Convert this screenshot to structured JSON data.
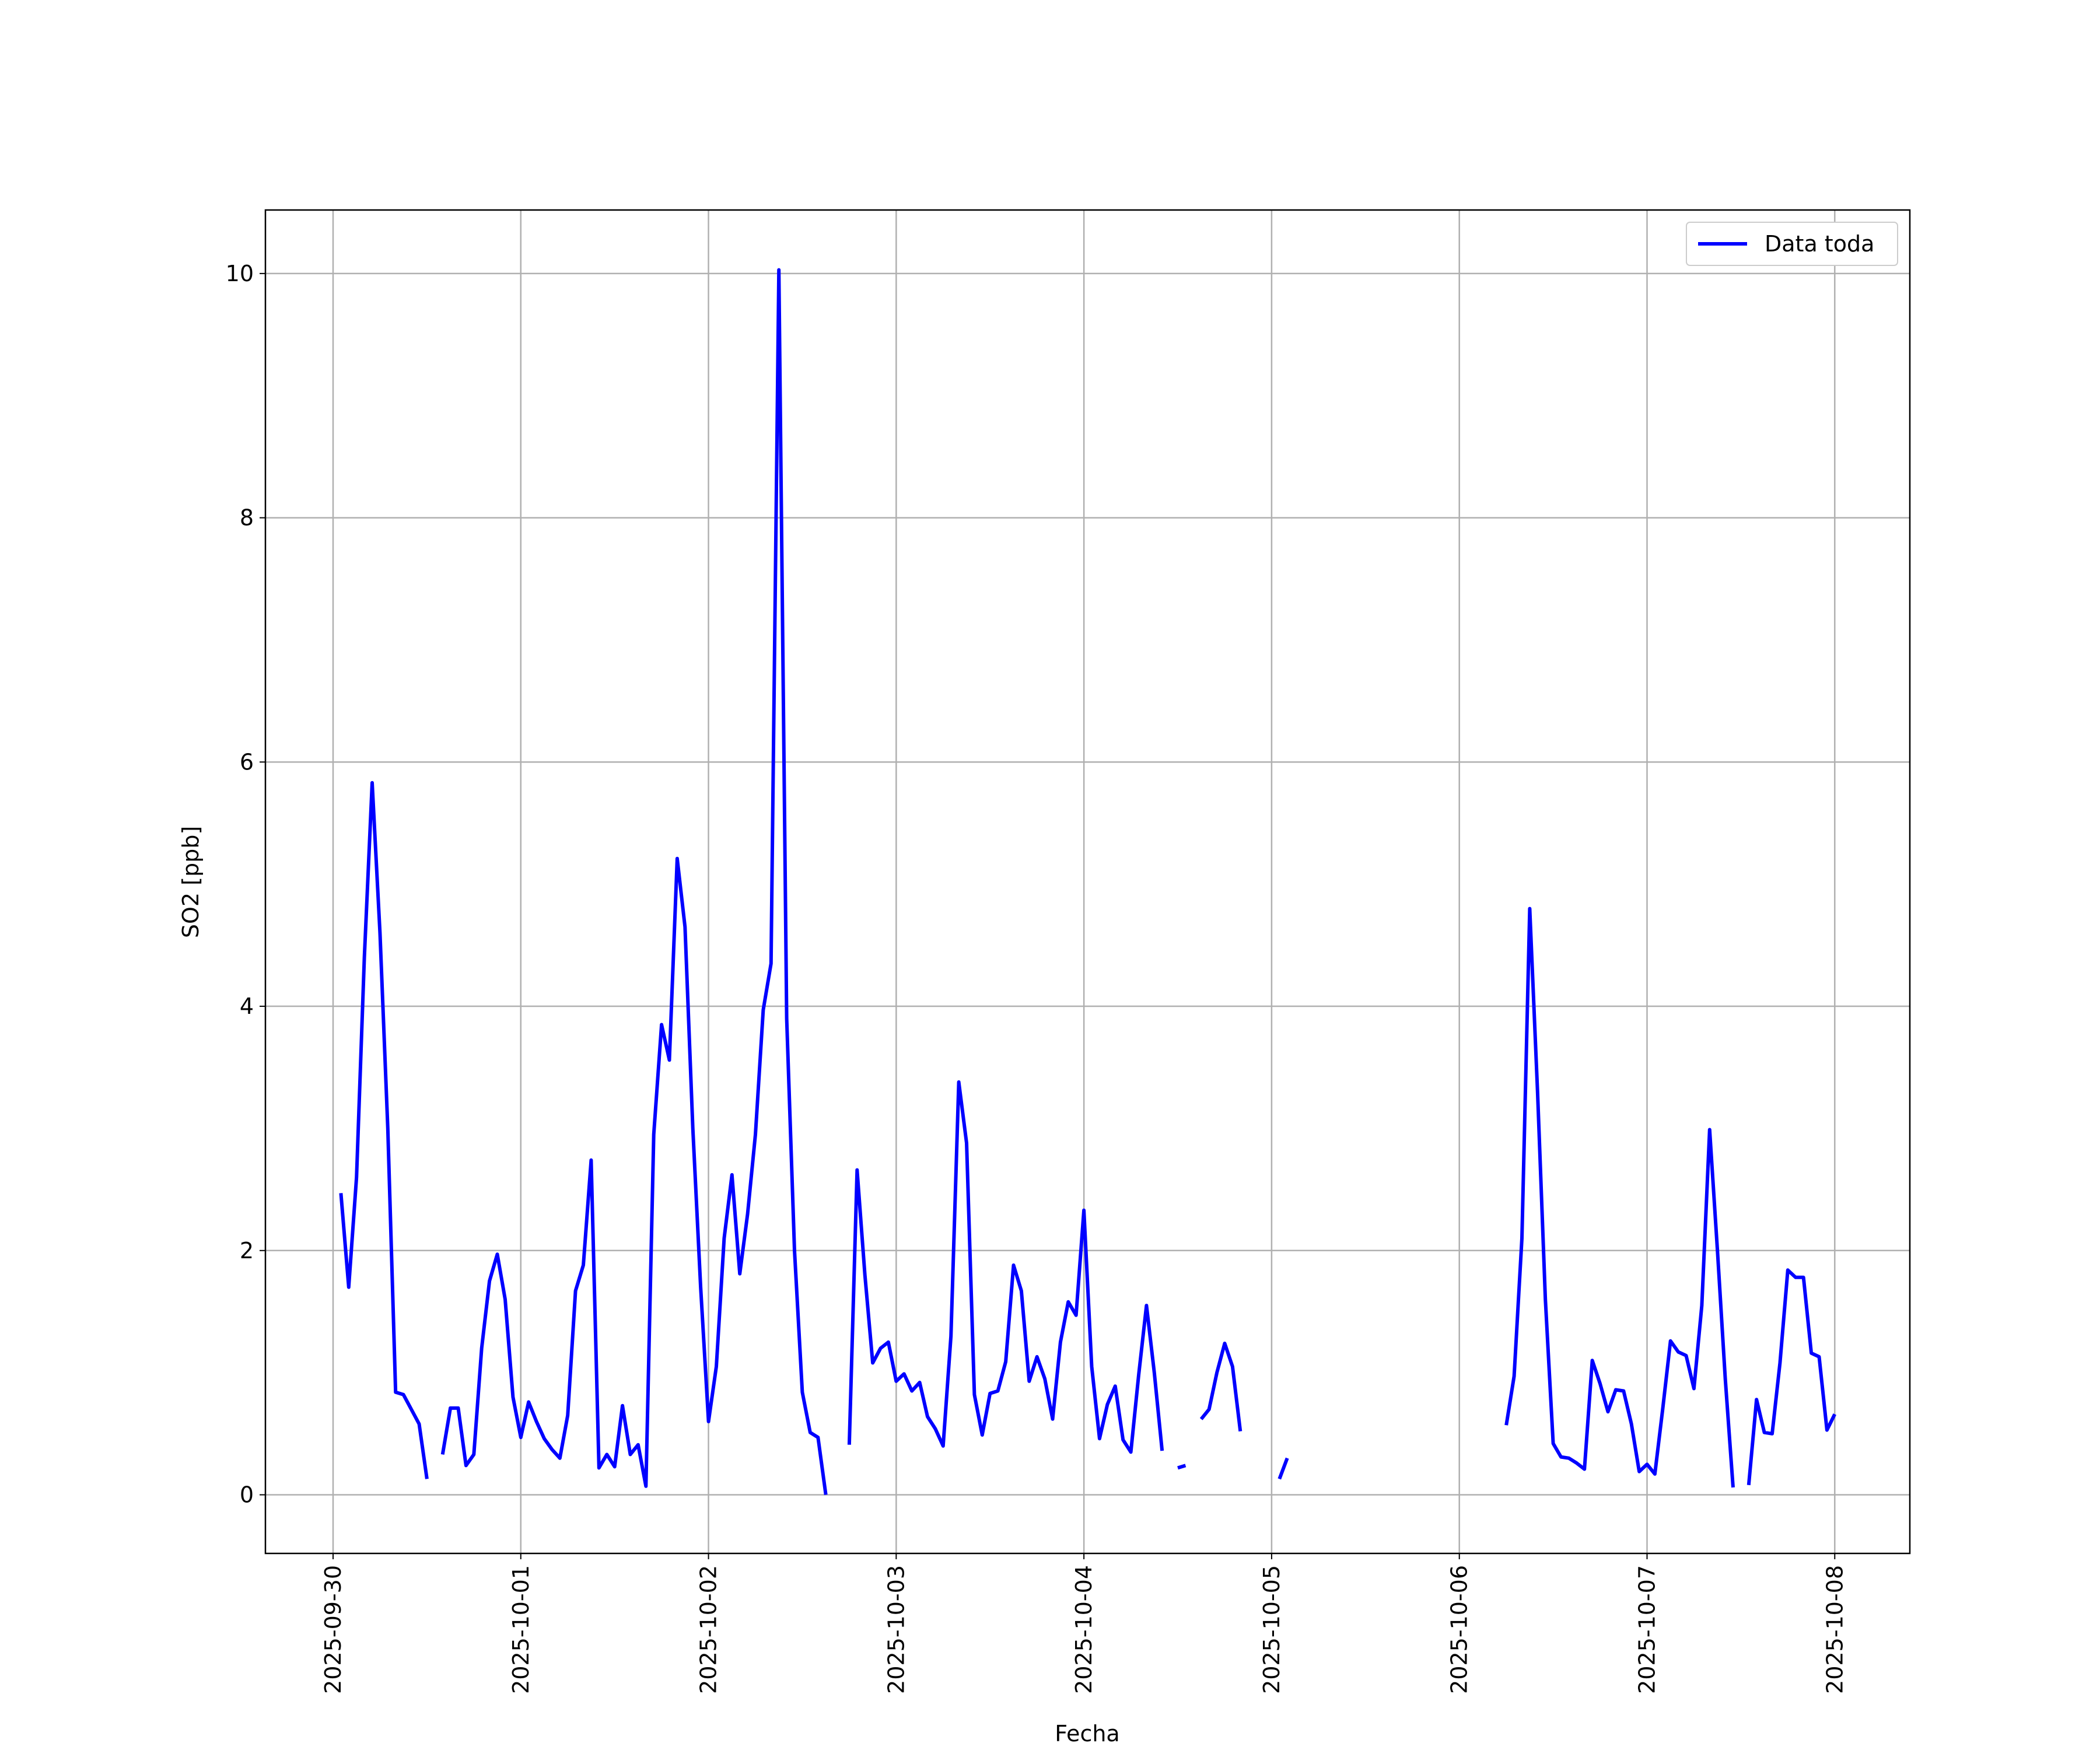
{
  "chart_data": {
    "type": "line",
    "xlabel": "Fecha",
    "ylabel": "SO2 [ppb]",
    "xlim": [
      "2025-09-29T15:21",
      "2025-10-08T09:36"
    ],
    "xticks": [
      "2025-09-30",
      "2025-10-01",
      "2025-10-02",
      "2025-10-03",
      "2025-10-04",
      "2025-10-05",
      "2025-10-06",
      "2025-10-07",
      "2025-10-08"
    ],
    "ylim": [
      -0.48,
      10.52
    ],
    "yticks": [
      0,
      2,
      4,
      6,
      8,
      10
    ],
    "grid": true,
    "legend": "upper right",
    "x": [
      "2025-09-30T01:00",
      "2025-09-30T02:00",
      "2025-09-30T03:00",
      "2025-09-30T04:00",
      "2025-09-30T05:00",
      "2025-09-30T06:00",
      "2025-09-30T07:00",
      "2025-09-30T08:00",
      "2025-09-30T09:00",
      "2025-09-30T10:00",
      "2025-09-30T11:00",
      "2025-09-30T12:00",
      "2025-09-30T13:00",
      "2025-09-30T14:00",
      "2025-09-30T15:00",
      "2025-09-30T16:00",
      "2025-09-30T17:00",
      "2025-09-30T18:00",
      "2025-09-30T19:00",
      "2025-09-30T20:00",
      "2025-09-30T21:00",
      "2025-09-30T22:00",
      "2025-09-30T23:00",
      "2025-10-01T00:00",
      "2025-10-01T01:00",
      "2025-10-01T02:00",
      "2025-10-01T03:00",
      "2025-10-01T04:00",
      "2025-10-01T05:00",
      "2025-10-01T06:00",
      "2025-10-01T07:00",
      "2025-10-01T08:00",
      "2025-10-01T09:00",
      "2025-10-01T10:00",
      "2025-10-01T11:00",
      "2025-10-01T12:00",
      "2025-10-01T13:00",
      "2025-10-01T14:00",
      "2025-10-01T15:00",
      "2025-10-01T16:00",
      "2025-10-01T17:00",
      "2025-10-01T18:00",
      "2025-10-01T19:00",
      "2025-10-01T20:00",
      "2025-10-01T21:00",
      "2025-10-01T22:00",
      "2025-10-01T23:00",
      "2025-10-02T00:00",
      "2025-10-02T01:00",
      "2025-10-02T02:00",
      "2025-10-02T03:00",
      "2025-10-02T04:00",
      "2025-10-02T05:00",
      "2025-10-02T06:00",
      "2025-10-02T07:00",
      "2025-10-02T08:00",
      "2025-10-02T09:00",
      "2025-10-02T10:00",
      "2025-10-02T11:00",
      "2025-10-02T12:00",
      "2025-10-02T13:00",
      "2025-10-02T14:00",
      "2025-10-02T15:00",
      "2025-10-02T16:00",
      "2025-10-02T18:00",
      "2025-10-02T19:00",
      "2025-10-02T20:00",
      "2025-10-02T21:00",
      "2025-10-02T22:00",
      "2025-10-02T23:00",
      "2025-10-03T00:00",
      "2025-10-03T01:00",
      "2025-10-03T02:00",
      "2025-10-03T03:00",
      "2025-10-03T04:00",
      "2025-10-03T05:00",
      "2025-10-03T06:00",
      "2025-10-03T07:00",
      "2025-10-03T08:00",
      "2025-10-03T09:00",
      "2025-10-03T10:00",
      "2025-10-03T11:00",
      "2025-10-03T12:00",
      "2025-10-03T13:00",
      "2025-10-03T14:00",
      "2025-10-03T15:00",
      "2025-10-03T16:00",
      "2025-10-03T17:00",
      "2025-10-03T18:00",
      "2025-10-03T19:00",
      "2025-10-03T20:00",
      "2025-10-03T21:00",
      "2025-10-03T22:00",
      "2025-10-03T23:00",
      "2025-10-04T00:00",
      "2025-10-04T01:00",
      "2025-10-04T02:00",
      "2025-10-04T03:00",
      "2025-10-04T04:00",
      "2025-10-04T05:00",
      "2025-10-04T06:00",
      "2025-10-04T07:00",
      "2025-10-04T08:00",
      "2025-10-04T09:00",
      "2025-10-04T10:00",
      "2025-10-04T11:00",
      "2025-10-04T12:00",
      "2025-10-04T13:00",
      "2025-10-04T14:00",
      "2025-10-04T15:00",
      "2025-10-04T16:00",
      "2025-10-04T17:00",
      "2025-10-04T18:00",
      "2025-10-04T19:00",
      "2025-10-04T20:00",
      "2025-10-04T21:00",
      "2025-10-05T01:00",
      "2025-10-05T02:00",
      "2025-10-05T03:00",
      "2025-10-06T06:00",
      "2025-10-06T07:00",
      "2025-10-06T08:00",
      "2025-10-06T09:00",
      "2025-10-06T10:00",
      "2025-10-06T11:00",
      "2025-10-06T12:00",
      "2025-10-06T13:00",
      "2025-10-06T14:00",
      "2025-10-06T15:00",
      "2025-10-06T16:00",
      "2025-10-06T17:00",
      "2025-10-06T18:00",
      "2025-10-06T19:00",
      "2025-10-06T20:00",
      "2025-10-06T21:00",
      "2025-10-06T22:00",
      "2025-10-06T23:00",
      "2025-10-07T00:00",
      "2025-10-07T01:00",
      "2025-10-07T02:00",
      "2025-10-07T03:00",
      "2025-10-07T04:00",
      "2025-10-07T05:00",
      "2025-10-07T06:00",
      "2025-10-07T07:00",
      "2025-10-07T08:00",
      "2025-10-07T09:00",
      "2025-10-07T10:00",
      "2025-10-07T11:00",
      "2025-10-07T12:00",
      "2025-10-07T13:00",
      "2025-10-07T14:00",
      "2025-10-07T15:00",
      "2025-10-07T16:00",
      "2025-10-07T17:00",
      "2025-10-07T18:00",
      "2025-10-07T19:00",
      "2025-10-07T20:00",
      "2025-10-07T21:00",
      "2025-10-07T22:00",
      "2025-10-07T23:00",
      "2025-10-08T00:00"
    ],
    "series": [
      {
        "name": "Data toda",
        "color": "#0000ff",
        "values": [
          2.47,
          1.7,
          2.6,
          4.4,
          5.83,
          4.6,
          3.0,
          0.84,
          0.82,
          0.7,
          0.58,
          0.13,
          null,
          0.33,
          0.71,
          0.71,
          0.24,
          0.33,
          1.2,
          1.75,
          1.97,
          1.6,
          0.8,
          0.47,
          0.76,
          0.6,
          0.46,
          0.37,
          0.3,
          0.65,
          1.67,
          1.88,
          2.74,
          0.22,
          0.33,
          0.23,
          0.73,
          0.33,
          0.41,
          0.07,
          2.95,
          3.85,
          3.56,
          5.21,
          4.65,
          3.0,
          1.7,
          0.6,
          1.05,
          2.1,
          2.62,
          1.81,
          2.3,
          2.95,
          3.97,
          4.35,
          10.03,
          3.9,
          2.0,
          0.84,
          0.51,
          0.47,
          0.0,
          null,
          0.41,
          2.66,
          1.8,
          1.08,
          1.2,
          1.25,
          0.93,
          0.99,
          0.85,
          0.92,
          0.64,
          0.54,
          0.4,
          1.3,
          3.38,
          2.88,
          0.82,
          0.49,
          0.83,
          0.85,
          1.09,
          1.88,
          1.67,
          0.93,
          1.13,
          0.95,
          0.62,
          1.25,
          1.58,
          1.47,
          2.33,
          1.05,
          0.46,
          0.74,
          0.89,
          0.45,
          0.35,
          0.98,
          1.55,
          1.0,
          0.36,
          null,
          0.22,
          0.24,
          null,
          0.62,
          0.7,
          1.0,
          1.24,
          1.05,
          0.52,
          null,
          0.13,
          0.3,
          null,
          0.57,
          0.97,
          2.1,
          4.8,
          3.3,
          1.6,
          0.42,
          0.31,
          0.3,
          0.26,
          0.21,
          1.1,
          0.91,
          0.68,
          0.86,
          0.85,
          0.58,
          0.19,
          0.25,
          0.17,
          0.7,
          1.26,
          1.17,
          1.14,
          0.87,
          1.55,
          2.99,
          2.0,
          0.95,
          0.06,
          null,
          0.08,
          0.78,
          0.51,
          0.5,
          1.08,
          1.84,
          1.78,
          1.78,
          1.16,
          1.13,
          0.53,
          0.66
        ]
      }
    ]
  }
}
